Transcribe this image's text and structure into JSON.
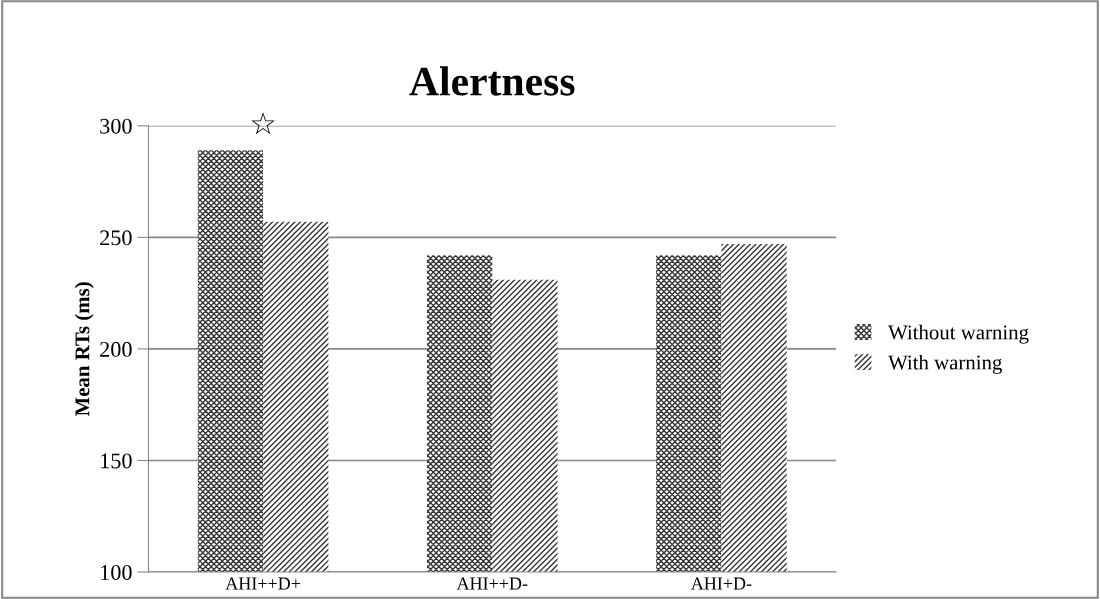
{
  "chart_data": {
    "type": "bar",
    "title": "Alertness",
    "ylabel": "Mean RTs (ms)",
    "categories": [
      "AHI++D+",
      "AHI++D-",
      "AHI+D-"
    ],
    "series": [
      {
        "name": "Without warning",
        "color": "#333333",
        "values": [
          289,
          242,
          242
        ]
      },
      {
        "name": "With warning",
        "color": "#333333",
        "values": [
          257,
          231,
          247
        ]
      }
    ],
    "ylim": [
      100,
      300
    ],
    "yticks": [
      100,
      150,
      200,
      250,
      300
    ],
    "grid": "y",
    "legend": "right",
    "annotations": [
      "☆"
    ]
  }
}
